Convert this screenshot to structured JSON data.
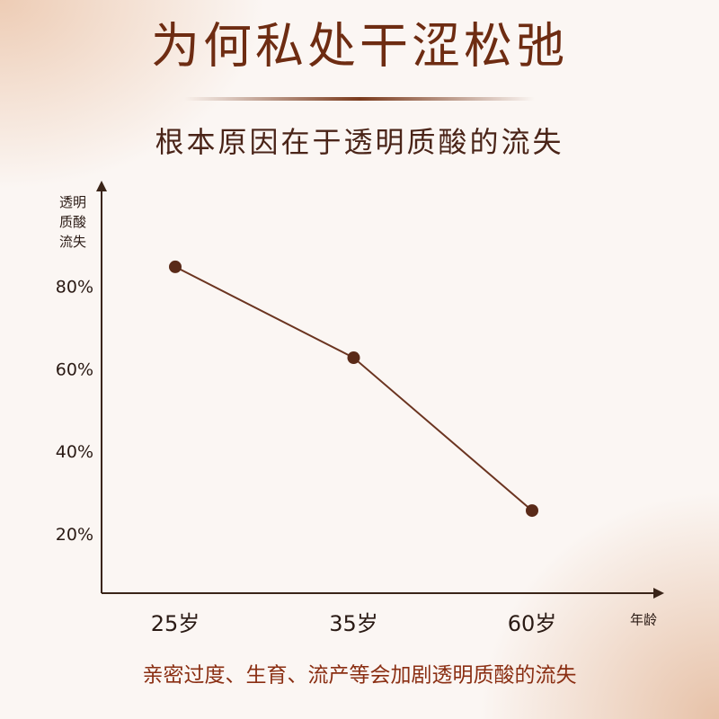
{
  "chart_data": {
    "type": "line",
    "title": "为何私处干涩松弛",
    "subtitle": "根本原因在于透明质酸的流失",
    "y_label": "透明质酸流失",
    "x_label": "年龄",
    "annotation": "亲密过度、生育、流产等会加剧透明质酸的流失",
    "categories": [
      "25岁",
      "35岁",
      "60岁"
    ],
    "values": [
      85,
      63,
      26
    ],
    "color": "#6b3420",
    "ylim": [
      6,
      105
    ],
    "yticks": [
      {
        "value": 20,
        "label": "20%"
      },
      {
        "value": 40,
        "label": "40%"
      },
      {
        "value": 60,
        "label": "60%"
      },
      {
        "value": 80,
        "label": "80%"
      }
    ],
    "grid": false
  }
}
